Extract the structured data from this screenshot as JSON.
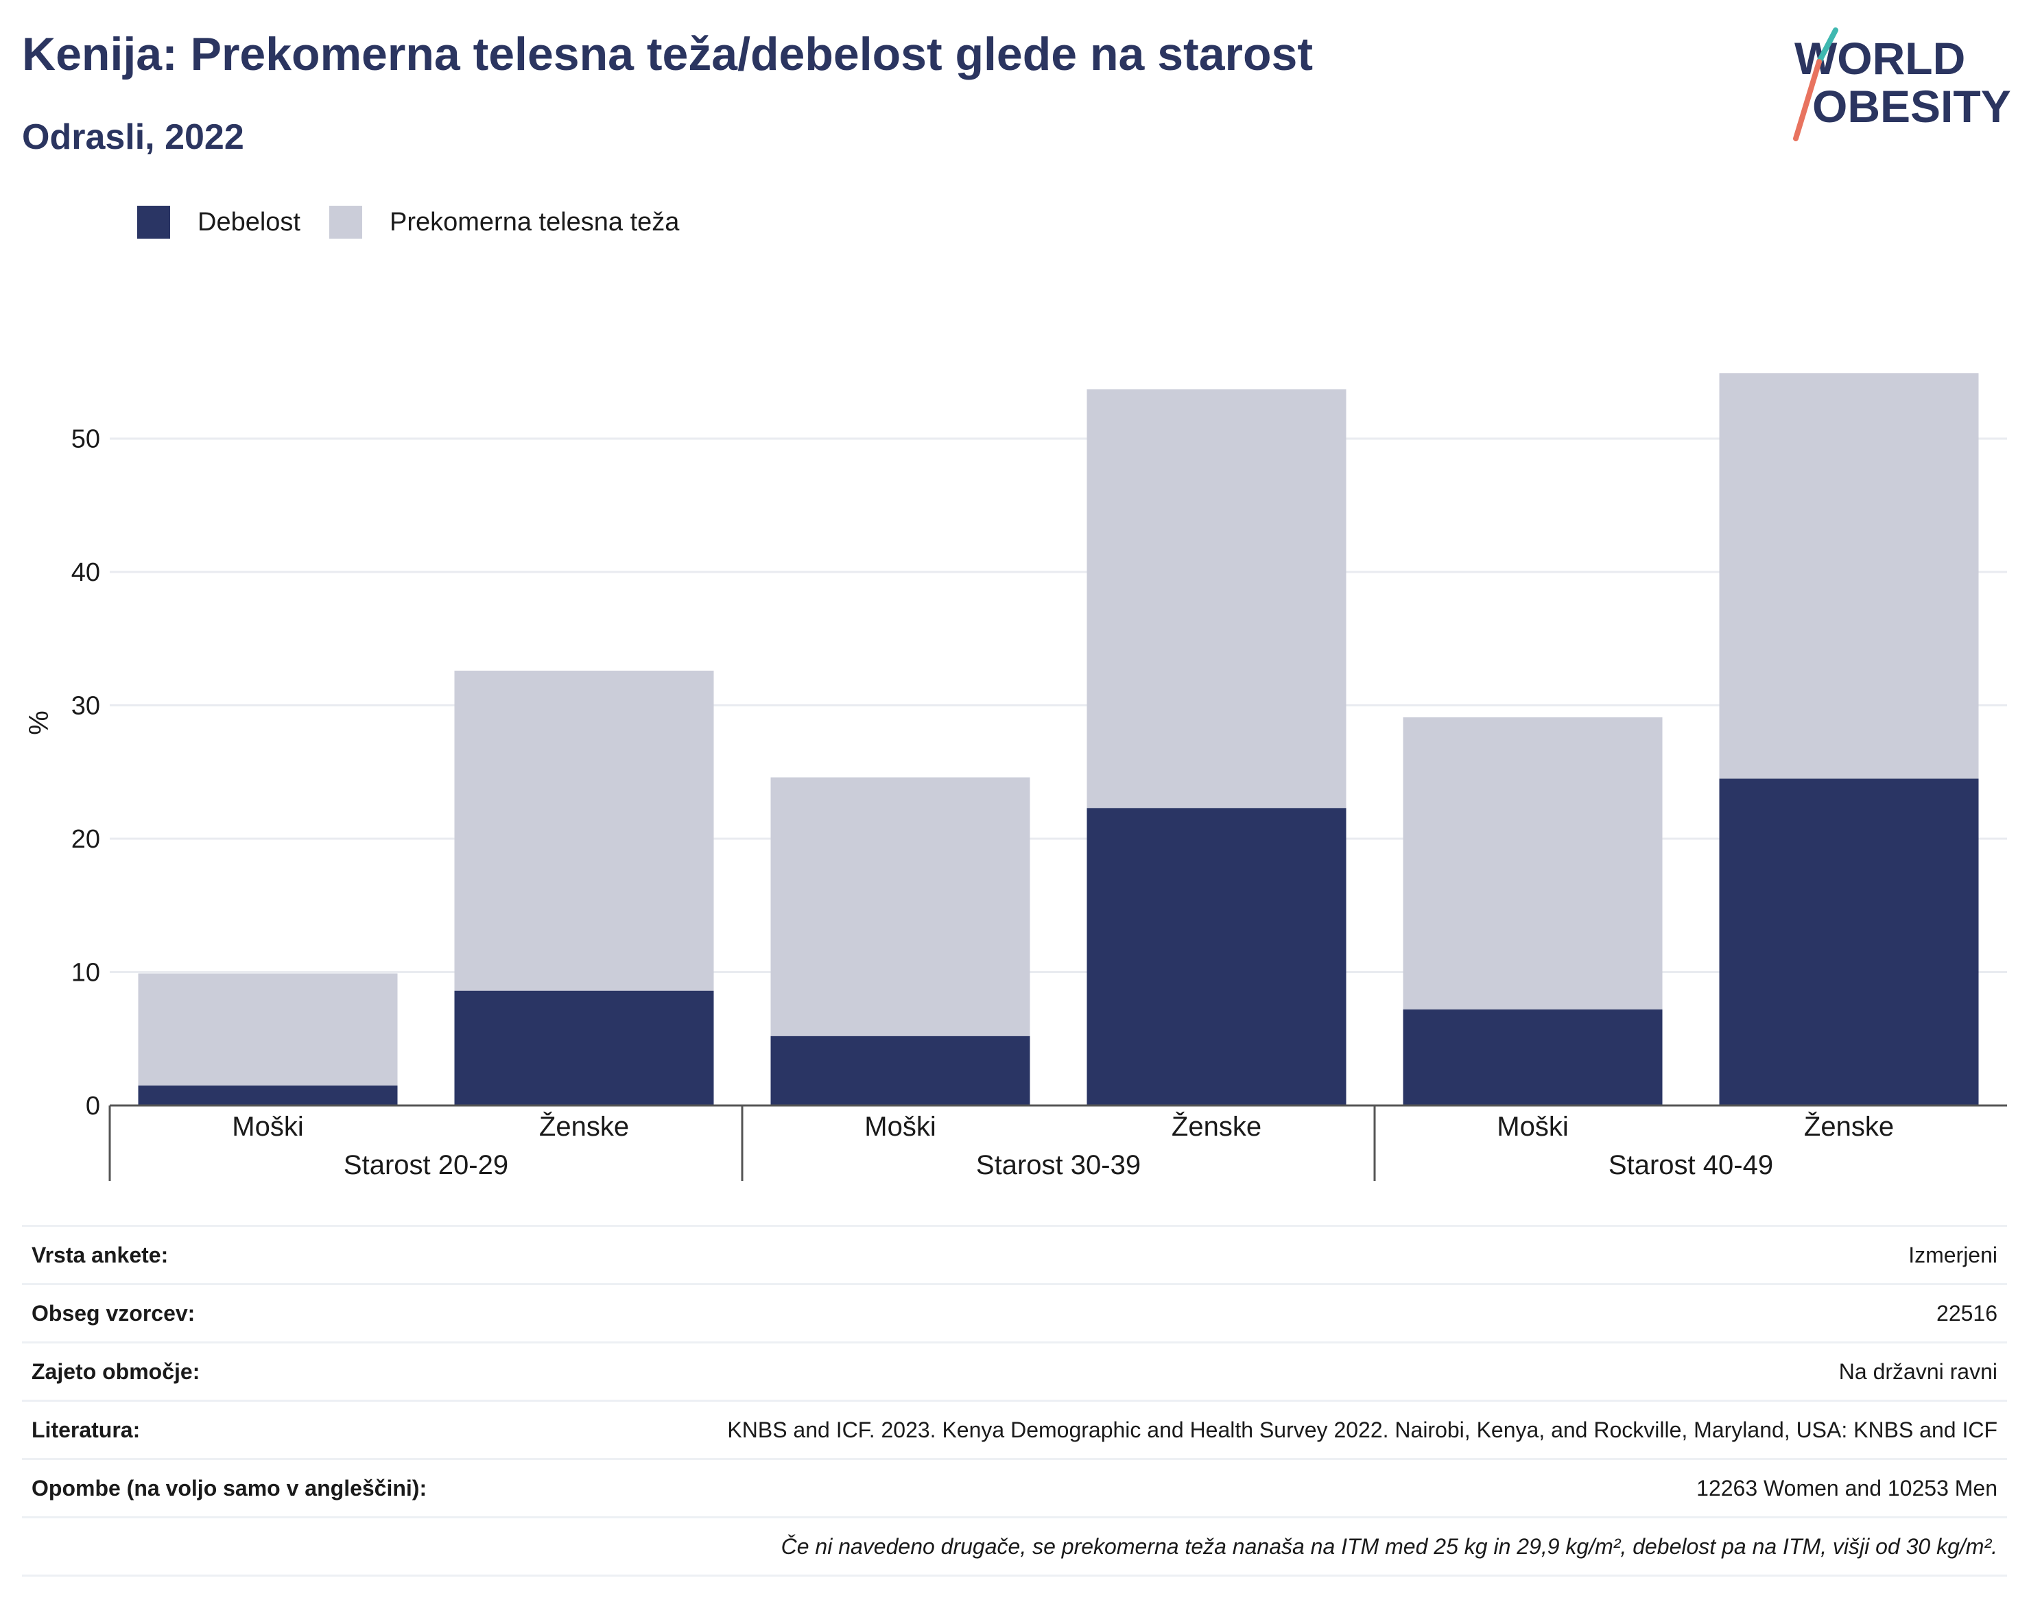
{
  "header": {
    "title": "Kenija: Prekomerna telesna teža/debelost glede na starost",
    "subtitle": "Odrasli, 2022"
  },
  "logo": {
    "text_line1": "WORLD",
    "text_line2": "OBESITY"
  },
  "colors": {
    "obesity": "#2a3564",
    "overweight": "#cbcdd9",
    "text_dark": "#2b3560",
    "grid": "#e9ebf0",
    "logo_teal": "#3fb8b0",
    "logo_coral": "#e8735f"
  },
  "chart_data": {
    "type": "bar",
    "stacked": true,
    "ylabel": "%",
    "ylim": [
      0,
      60
    ],
    "yticks": [
      0,
      10,
      20,
      30,
      40,
      50
    ],
    "grid": true,
    "legend_position": "top-left",
    "categories": [
      "Moški",
      "Ženske",
      "Moški",
      "Ženske",
      "Moški",
      "Ženske"
    ],
    "groups": [
      "Starost 20-29",
      "Starost 30-39",
      "Starost 40-49"
    ],
    "series": [
      {
        "name": "Debelost",
        "values": [
          1.5,
          8.6,
          5.2,
          22.3,
          7.2,
          24.5
        ]
      },
      {
        "name": "Prekomerna telesna teža",
        "values": [
          8.4,
          24.0,
          19.4,
          31.4,
          21.9,
          30.4
        ]
      }
    ]
  },
  "info": {
    "rows": [
      {
        "label": "Vrsta ankete:",
        "value": "Izmerjeni"
      },
      {
        "label": "Obseg vzorcev:",
        "value": "22516"
      },
      {
        "label": "Zajeto območje:",
        "value": "Na državni ravni"
      },
      {
        "label": "Literatura:",
        "value": "KNBS and ICF. 2023. Kenya Demographic and Health Survey 2022. Nairobi, Kenya, and Rockville, Maryland, USA: KNBS and ICF"
      },
      {
        "label": "Opombe (na voljo samo v angleščini):",
        "value": "12263 Women and 10253 Men"
      }
    ],
    "footnote": "Če ni navedeno drugače, se prekomerna teža nanaša na ITM med 25 kg in 29,9 kg/m², debelost pa na ITM, višji od 30 kg/m²."
  }
}
